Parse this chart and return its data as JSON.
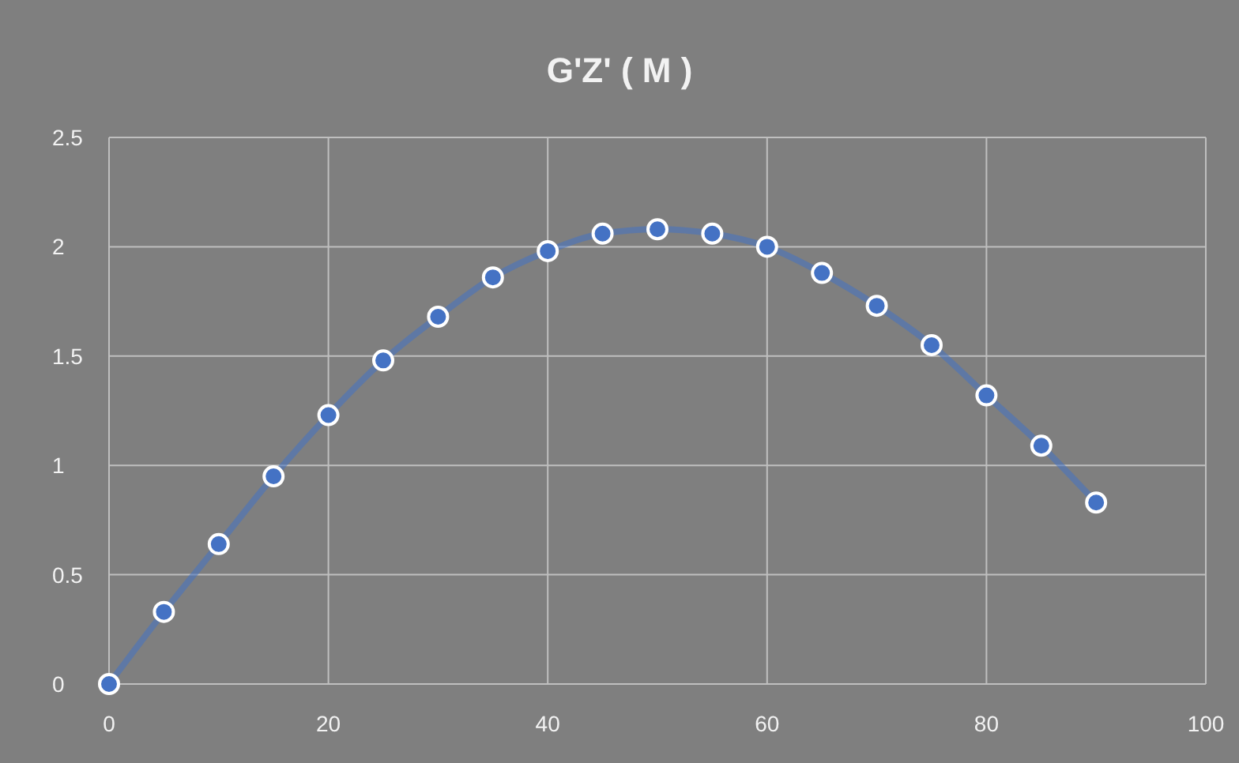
{
  "chart_data": {
    "type": "line",
    "title": "G'Z' ( M )",
    "x": [
      0,
      5,
      10,
      15,
      20,
      25,
      30,
      35,
      40,
      45,
      50,
      55,
      60,
      65,
      70,
      75,
      80,
      85,
      90
    ],
    "series": [
      {
        "color": "#4472c4",
        "values": [
          0,
          0.33,
          0.64,
          0.95,
          1.23,
          1.48,
          1.68,
          1.86,
          1.98,
          2.06,
          2.08,
          2.06,
          2.0,
          1.88,
          1.73,
          1.55,
          1.32,
          1.09,
          0.83
        ]
      }
    ],
    "xlim": [
      0,
      100
    ],
    "xticks": [
      0,
      20,
      40,
      60,
      80,
      100
    ],
    "ylim": [
      0,
      2.5
    ],
    "yticks": [
      0,
      0.5,
      1,
      1.5,
      2,
      2.5
    ],
    "grid": true,
    "marker": "circle",
    "line_style": "solid"
  }
}
